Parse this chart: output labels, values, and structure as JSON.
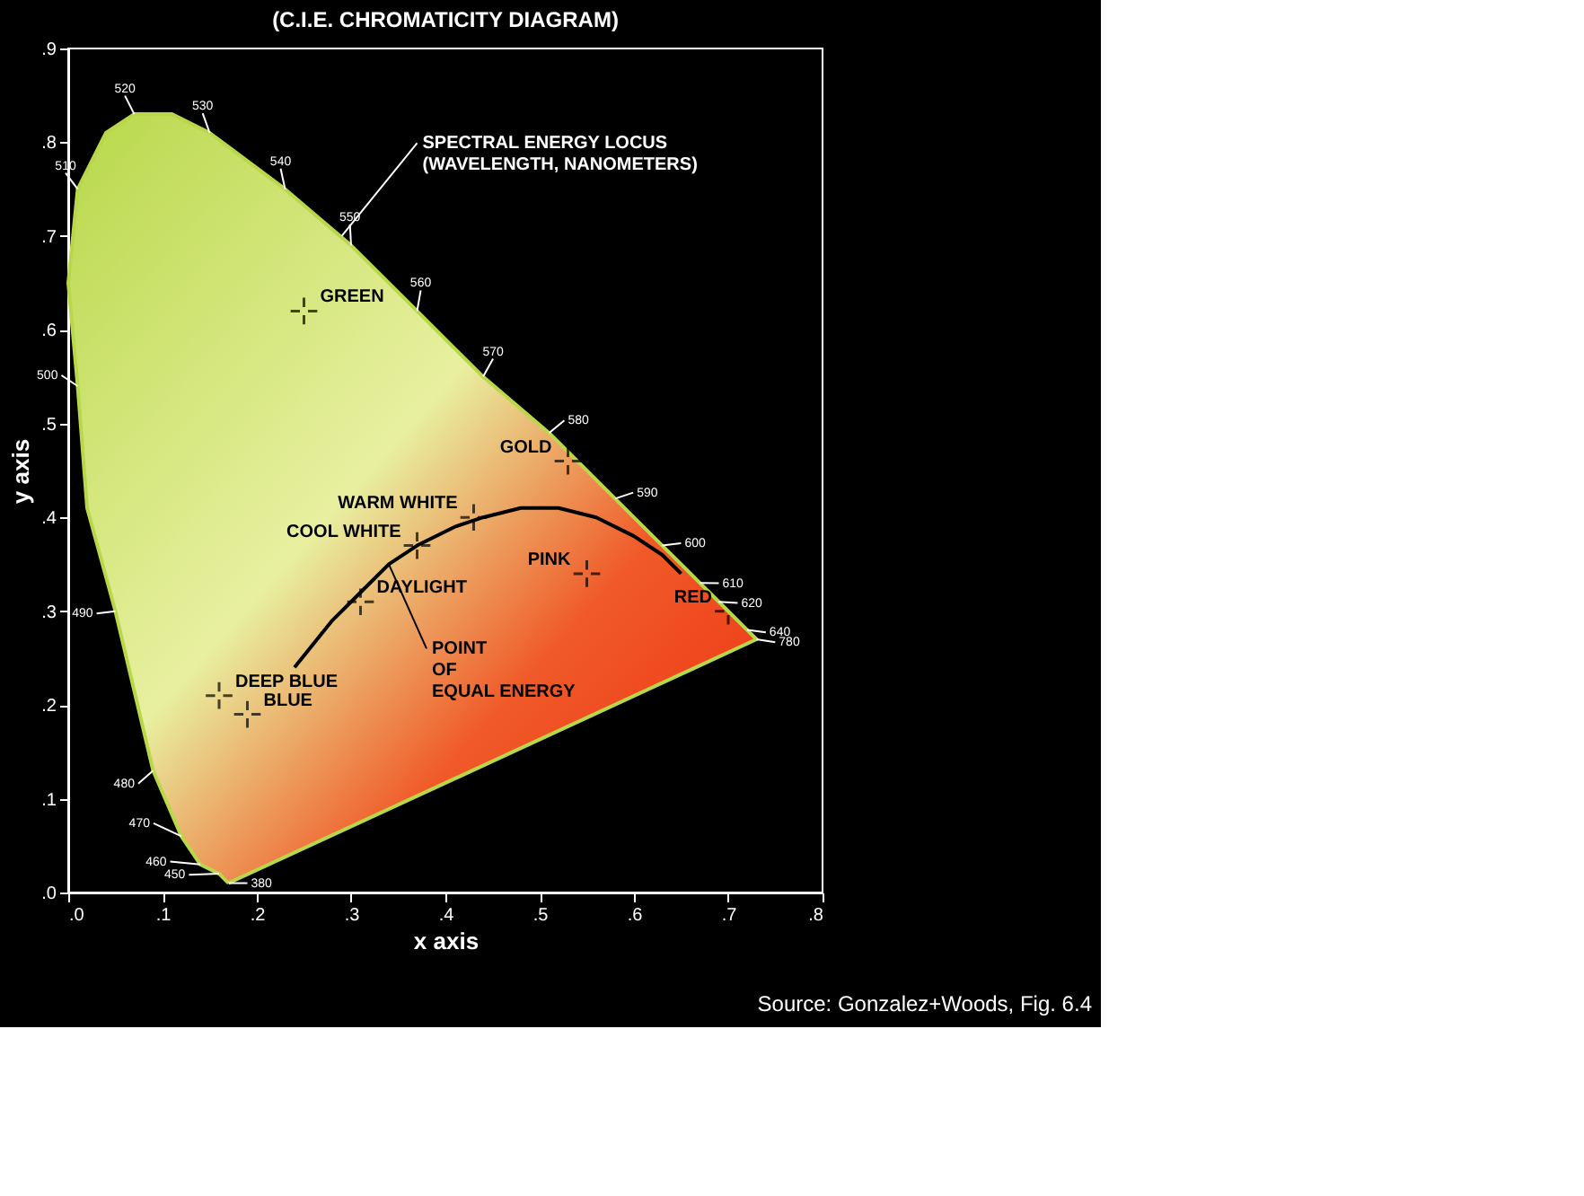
{
  "chart_data": {
    "type": "line",
    "title": "(C.I.E. CHROMATICITY DIAGRAM)",
    "xlabel": "x axis",
    "ylabel": "y axis",
    "xlim": [
      0,
      0.8
    ],
    "ylim": [
      0,
      0.9
    ],
    "xticks": [
      {
        "value": 0,
        "label": ".0"
      },
      {
        "value": 0.1,
        "label": ".1"
      },
      {
        "value": 0.2,
        "label": ".2"
      },
      {
        "value": 0.3,
        "label": ".3"
      },
      {
        "value": 0.4,
        "label": ".4"
      },
      {
        "value": 0.5,
        "label": ".5"
      },
      {
        "value": 0.6,
        "label": ".6"
      },
      {
        "value": 0.7,
        "label": ".7"
      },
      {
        "value": 0.8,
        "label": ".8"
      }
    ],
    "yticks": [
      {
        "value": 0,
        "label": ".0"
      },
      {
        "value": 0.1,
        "label": ".1"
      },
      {
        "value": 0.2,
        "label": ".2"
      },
      {
        "value": 0.3,
        "label": ".3"
      },
      {
        "value": 0.4,
        "label": ".4"
      },
      {
        "value": 0.5,
        "label": ".5"
      },
      {
        "value": 0.6,
        "label": ".6"
      },
      {
        "value": 0.7,
        "label": ".7"
      },
      {
        "value": 0.8,
        "label": ".8"
      },
      {
        "value": 0.9,
        "label": ".9"
      }
    ],
    "grid": false,
    "series": [
      {
        "type": "area",
        "color": "#b8d84a",
        "x": [
          0.17,
          0.16,
          0.14,
          0.12,
          0.09,
          0.05,
          0.02,
          0.01,
          0.0,
          0.01,
          0.04,
          0.07,
          0.11,
          0.15,
          0.23,
          0.3,
          0.37,
          0.44,
          0.51,
          0.58,
          0.63,
          0.67,
          0.69,
          0.72,
          0.73,
          0.17
        ],
        "values": [
          0.01,
          0.02,
          0.03,
          0.06,
          0.13,
          0.3,
          0.41,
          0.54,
          0.65,
          0.75,
          0.81,
          0.83,
          0.83,
          0.81,
          0.75,
          0.69,
          0.62,
          0.55,
          0.49,
          0.42,
          0.37,
          0.33,
          0.31,
          0.28,
          0.27,
          0.01
        ]
      },
      {
        "color": "#000000",
        "line_style": "solid",
        "x": [
          0.24,
          0.28,
          0.31,
          0.34,
          0.37,
          0.41,
          0.44,
          0.48,
          0.52,
          0.56,
          0.6,
          0.63,
          0.65
        ],
        "values": [
          0.24,
          0.29,
          0.32,
          0.35,
          0.37,
          0.39,
          0.4,
          0.41,
          0.41,
          0.4,
          0.38,
          0.36,
          0.34
        ]
      },
      {
        "type": "scatter",
        "marker": "cross",
        "color": "#000000",
        "x": [
          0.25,
          0.53,
          0.43,
          0.37,
          0.31,
          0.16,
          0.19,
          0.55,
          0.7
        ],
        "values": [
          0.62,
          0.46,
          0.4,
          0.37,
          0.31,
          0.21,
          0.19,
          0.34,
          0.3
        ],
        "value_labels": [
          "GREEN",
          "GOLD",
          "WARM WHITE",
          "COOL WHITE",
          "DAYLIGHT",
          "DEEP BLUE",
          "BLUE",
          "PINK",
          "RED"
        ]
      }
    ],
    "annotations": [
      {
        "text": "SPECTRAL ENERGY LOCUS\n(WAVELENGTH, NANOMETERS)",
        "x": 0.29,
        "y": 0.7
      },
      {
        "text": "POINT\nOF\nEQUAL ENERGY",
        "x": 0.34,
        "y": 0.35
      },
      {
        "text": "380",
        "x": 0.17,
        "y": 0.01
      },
      {
        "text": "450",
        "x": 0.16,
        "y": 0.02
      },
      {
        "text": "460",
        "x": 0.14,
        "y": 0.03
      },
      {
        "text": "470",
        "x": 0.12,
        "y": 0.06
      },
      {
        "text": "480",
        "x": 0.09,
        "y": 0.13
      },
      {
        "text": "490",
        "x": 0.05,
        "y": 0.3
      },
      {
        "text": "500",
        "x": 0.01,
        "y": 0.54
      },
      {
        "text": "510",
        "x": 0.01,
        "y": 0.75
      },
      {
        "text": "520",
        "x": 0.07,
        "y": 0.83
      },
      {
        "text": "530",
        "x": 0.15,
        "y": 0.81
      },
      {
        "text": "540",
        "x": 0.23,
        "y": 0.75
      },
      {
        "text": "550",
        "x": 0.3,
        "y": 0.69
      },
      {
        "text": "560",
        "x": 0.37,
        "y": 0.62
      },
      {
        "text": "570",
        "x": 0.44,
        "y": 0.55
      },
      {
        "text": "580",
        "x": 0.51,
        "y": 0.49
      },
      {
        "text": "590",
        "x": 0.58,
        "y": 0.42
      },
      {
        "text": "600",
        "x": 0.63,
        "y": 0.37
      },
      {
        "text": "610",
        "x": 0.67,
        "y": 0.33
      },
      {
        "text": "620",
        "x": 0.69,
        "y": 0.31
      },
      {
        "text": "640",
        "x": 0.72,
        "y": 0.28
      },
      {
        "text": "780",
        "x": 0.73,
        "y": 0.27
      },
      "Source: Gonzalez+Woods, Fig. 6.4"
    ]
  }
}
